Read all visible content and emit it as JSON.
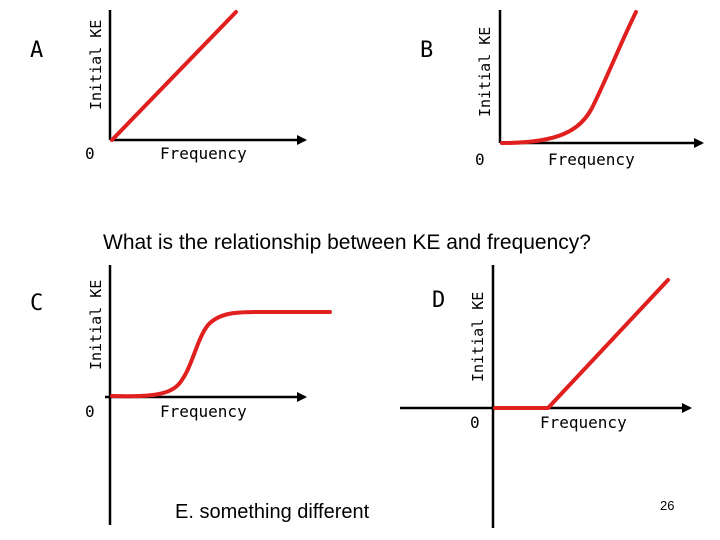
{
  "question": "What is the relationship between KE and frequency?",
  "option_e": "E. something different",
  "page_number": "26",
  "colors": {
    "curve": "#e01f1f",
    "axis": "#000000"
  },
  "graphs": [
    {
      "letter": "A",
      "ylabel": "Initial KE",
      "xlabel": "Frequency",
      "origin": "0",
      "shape": "linear-through-origin"
    },
    {
      "letter": "B",
      "ylabel": "Initial KE",
      "xlabel": "Frequency",
      "origin": "0",
      "shape": "exponential-rise"
    },
    {
      "letter": "C",
      "ylabel": "Initial KE",
      "xlabel": "Frequency",
      "origin": "0",
      "shape": "sigmoid"
    },
    {
      "letter": "D",
      "ylabel": "Initial KE",
      "xlabel": "Frequency",
      "origin": "0",
      "shape": "zero-then-linear"
    }
  ]
}
